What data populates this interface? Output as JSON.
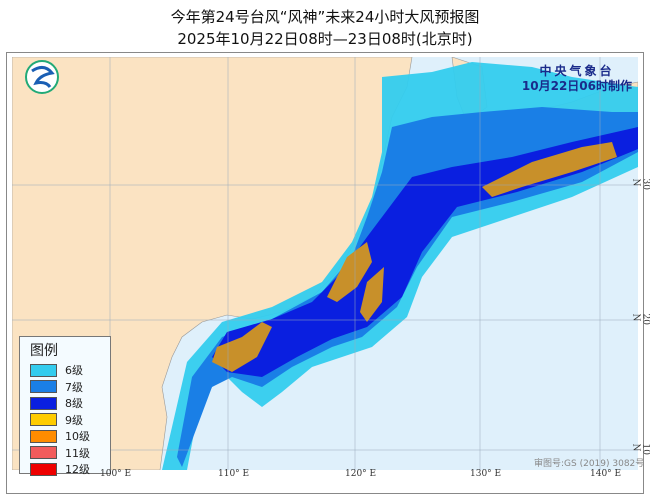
{
  "title": "今年第24号台风“风神”未来24小时大风预报图",
  "subtitle": "2025年10月22日08时—23日08时(北京时)",
  "agency": {
    "name": "中央气象台",
    "issued": "10月22日06时制作"
  },
  "legend": {
    "title": "图例",
    "items": [
      {
        "label": "6级",
        "color": "#33ccee"
      },
      {
        "label": "7级",
        "color": "#1a7fe6"
      },
      {
        "label": "8级",
        "color": "#0a1fe0"
      },
      {
        "label": "9级",
        "color": "#ffcc00"
      },
      {
        "label": "10级",
        "color": "#ff8c00"
      },
      {
        "label": "11级",
        "color": "#f25c5c"
      },
      {
        "label": "12级",
        "color": "#ee0000"
      }
    ]
  },
  "axes": {
    "lon": [
      "100° E",
      "110° E",
      "120° E",
      "130° E",
      "140° E"
    ],
    "lat": [
      "30 N",
      "20 N",
      "10 N"
    ]
  },
  "approval": "审图号:GS (2019) 3082号",
  "colors": {
    "land": "#fbe3c2",
    "sea": "#dff0fb",
    "band_orange": "#c8902a"
  }
}
